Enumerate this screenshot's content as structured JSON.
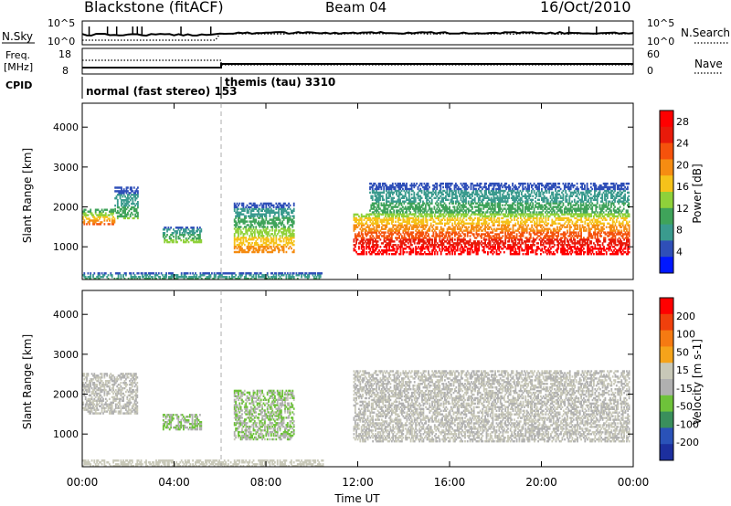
{
  "header": {
    "station": "Blackstone (fitACF)",
    "beam": "Beam 04",
    "date": "16/Oct/2010"
  },
  "sky_panel": {
    "left_label": "N.Sky",
    "right_label": "N.Search",
    "left_ticks": [
      "10^5",
      "10^0"
    ],
    "right_ticks": [
      "10^5",
      "10^0"
    ]
  },
  "freq_panel": {
    "left_label_line1": "Freq.",
    "left_label_line2": "[MHz]",
    "right_label": "Nave",
    "left_ticks": [
      "18",
      "8"
    ],
    "right_ticks": [
      "60",
      "0"
    ]
  },
  "cpid": {
    "label": "CPID",
    "segments": [
      {
        "name": "normal (fast stereo) 153",
        "start_hour": 0,
        "end_hour": 6
      },
      {
        "name": "themis (tau) 3310",
        "start_hour": 6,
        "end_hour": 24
      }
    ]
  },
  "time_axis": {
    "title": "Time UT",
    "ticks": [
      "00:00",
      "04:00",
      "08:00",
      "12:00",
      "16:00",
      "20:00",
      "00:00"
    ]
  },
  "colors": {
    "power_scale": [
      "#0018ff",
      "#2f4fb8",
      "#3a9b8e",
      "#3fa35a",
      "#8fd13a",
      "#f5c21a",
      "#f58c12",
      "#f5520c",
      "#e81a0a",
      "#ff0000"
    ],
    "velocity_scale": [
      "#1c2f9e",
      "#2a52b8",
      "#3a8f5c",
      "#6ec23a",
      "#b0b0b0",
      "#c8c8b8",
      "#f5a31a",
      "#f57a12",
      "#f0400c",
      "#ff0000"
    ]
  },
  "chart_data": [
    {
      "type": "heatmap",
      "title": "",
      "xlabel": "Time UT",
      "ylabel": "Slant Range [km]",
      "xlim": [
        0,
        24
      ],
      "ylim": [
        180,
        4600
      ],
      "yticks": [
        1000,
        2000,
        3000,
        4000
      ],
      "colorbar": {
        "label": "Power [dB]",
        "ticks": [
          "4",
          "8",
          "12",
          "16",
          "20",
          "24",
          "28"
        ],
        "range": [
          0,
          30
        ]
      },
      "echo_regions": [
        {
          "t_start": 0.0,
          "t_end": 1.4,
          "r_low": 1550,
          "r_high": 1950,
          "value_low": 8,
          "value_high": 22
        },
        {
          "t_start": 1.4,
          "t_end": 2.4,
          "r_low": 1700,
          "r_high": 2500,
          "value_low": 4,
          "value_high": 12
        },
        {
          "t_start": 3.5,
          "t_end": 5.2,
          "r_low": 1100,
          "r_high": 1500,
          "value_low": 4,
          "value_high": 14
        },
        {
          "t_start": 6.6,
          "t_end": 9.2,
          "r_low": 850,
          "r_high": 2100,
          "value_low": 4,
          "value_high": 20
        },
        {
          "t_start": 11.8,
          "t_end": 23.8,
          "r_low": 800,
          "r_high": 1800,
          "value_low": 14,
          "value_high": 30
        },
        {
          "t_start": 12.5,
          "t_end": 23.8,
          "r_low": 1800,
          "r_high": 2600,
          "value_low": 4,
          "value_high": 12
        },
        {
          "t_start": 0.0,
          "t_end": 10.5,
          "r_low": 180,
          "r_high": 350,
          "value_low": 4,
          "value_high": 10
        }
      ]
    },
    {
      "type": "heatmap",
      "title": "",
      "xlabel": "Time UT",
      "ylabel": "Slant Range [km]",
      "xlim": [
        0,
        24
      ],
      "ylim": [
        180,
        4600
      ],
      "yticks": [
        1000,
        2000,
        3000,
        4000
      ],
      "colorbar": {
        "label": "Velocity [m s-1]",
        "ticks": [
          "200",
          "100",
          "50",
          "15",
          "-15",
          "-50",
          "-100",
          "-200"
        ],
        "range": [
          -250,
          250
        ]
      },
      "echo_regions": [
        {
          "t_start": 0.0,
          "t_end": 2.4,
          "r_low": 1500,
          "r_high": 2500,
          "value_low": -15,
          "value_high": 15
        },
        {
          "t_start": 3.5,
          "t_end": 5.2,
          "r_low": 1100,
          "r_high": 1500,
          "value_low": -100,
          "value_high": -15
        },
        {
          "t_start": 6.6,
          "t_end": 9.2,
          "r_low": 850,
          "r_high": 2100,
          "value_low": -100,
          "value_high": 15
        },
        {
          "t_start": 11.8,
          "t_end": 23.8,
          "r_low": 800,
          "r_high": 2600,
          "value_low": -15,
          "value_high": 15
        },
        {
          "t_start": 0.0,
          "t_end": 10.5,
          "r_low": 180,
          "r_high": 350,
          "value_low": 15,
          "value_high": 50
        }
      ]
    }
  ]
}
